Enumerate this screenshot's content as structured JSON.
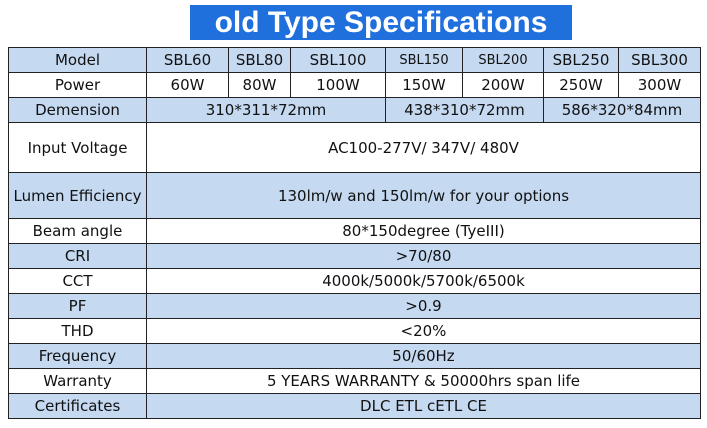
{
  "title": "old Type Specifications",
  "table": {
    "header": [
      "Model",
      "SBL60",
      "SBL80",
      "SBL100",
      "SBL150",
      "SBL200",
      "SBL250",
      "SBL300"
    ],
    "rows": [
      [
        "Power",
        "60W",
        "80W",
        "100W",
        "150W",
        "200W",
        "250W",
        "300W"
      ],
      [
        "Demension",
        "310*311*72mm",
        "438*310*72mm",
        "586*320*84mm"
      ],
      [
        "Input Voltage",
        "AC100-277V/ 347V/ 480V"
      ],
      [
        "Lumen Efficiency",
        "130lm/w and 150lm/w for your options"
      ],
      [
        "Beam angle",
        "80*150degree (TyeIII)"
      ],
      [
        "CRI",
        ">70/80"
      ],
      [
        "CCT",
        "4000k/5000k/5700k/6500k"
      ],
      [
        "PF",
        ">0.9"
      ],
      [
        "THD",
        "<20%"
      ],
      [
        "Frequency",
        "50/60Hz"
      ],
      [
        "Warranty",
        "5 YEARS WARRANTY & 50000hrs span life"
      ],
      [
        "Certificates",
        "DLC ETL cETL  CE"
      ]
    ]
  }
}
